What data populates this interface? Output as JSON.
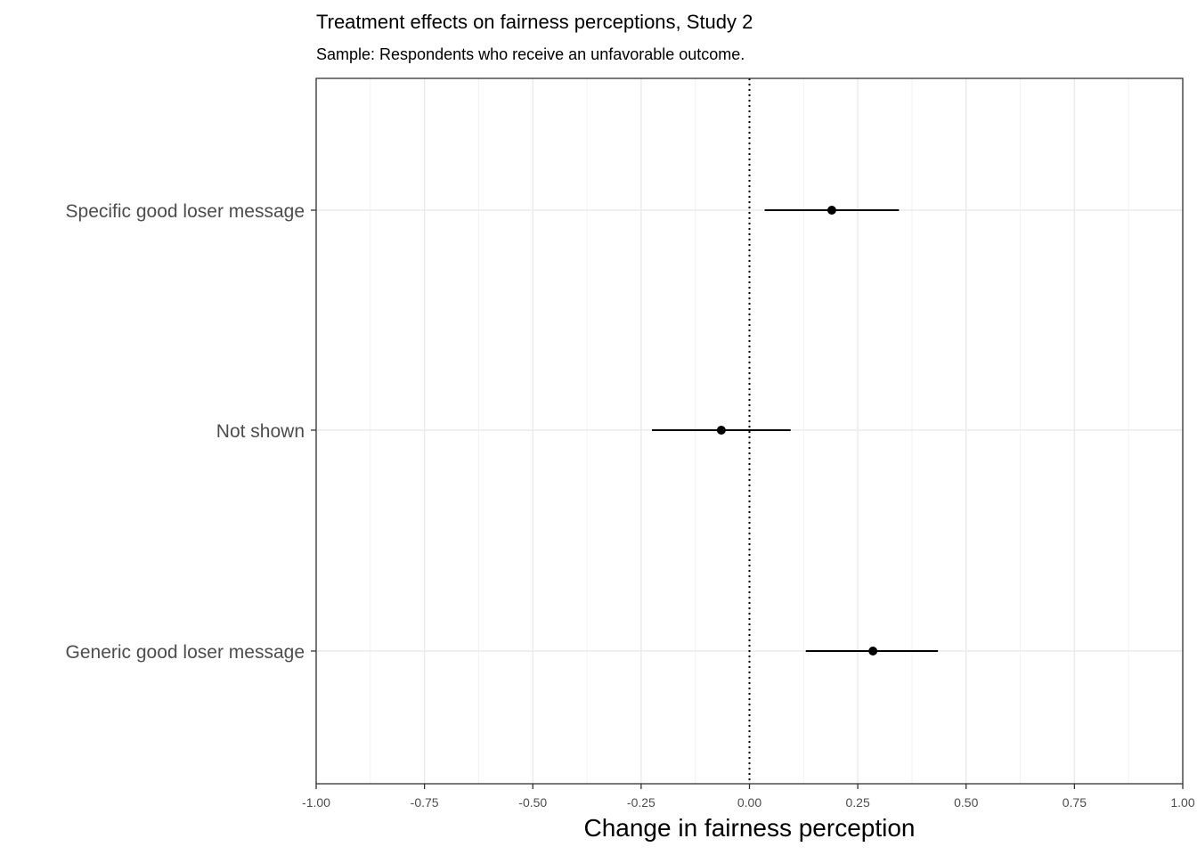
{
  "chart_data": {
    "type": "scatter",
    "title": "Treatment effects on fairness perceptions, Study 2",
    "subtitle": "Sample: Respondents who receive an unfavorable outcome.",
    "xlabel": "Change in fairness perception",
    "ylabel": "",
    "xlim": [
      -1.0,
      1.0
    ],
    "x_ticks": [
      "-1.00",
      "-0.75",
      "-0.50",
      "-0.25",
      "0.00",
      "0.25",
      "0.50",
      "0.75",
      "1.00"
    ],
    "categories": [
      "Specific good loser message",
      "Not shown",
      "Generic good loser message"
    ],
    "estimates": [
      0.19,
      -0.065,
      0.285
    ],
    "ci_low": [
      0.035,
      -0.225,
      0.13
    ],
    "ci_high": [
      0.345,
      0.095,
      0.435
    ],
    "reference_line": 0,
    "grid": true,
    "legend": "none"
  }
}
